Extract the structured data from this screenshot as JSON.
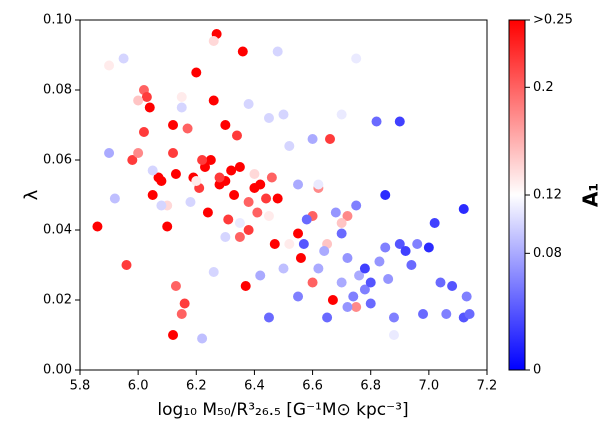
{
  "chart_data": {
    "type": "scatter",
    "xlabel": "log₁₀ M₅₀/R³₂₆.₅ [G⁻¹M⊙ kpc⁻³]",
    "ylabel": "λ",
    "xlim": [
      5.8,
      7.2
    ],
    "xticks": [
      5.8,
      {
        "value": 6,
        "label": "6.0"
      },
      6.2,
      6.4,
      6.6,
      6.8,
      {
        "value": 7,
        "label": "7.0"
      },
      7.2
    ],
    "ylim": [
      0,
      0.1
    ],
    "yticks": [
      {
        "value": 0,
        "label": "0.00"
      },
      0.02,
      0.04,
      0.06,
      0.08,
      {
        "value": 0.1,
        "label": "0.10"
      }
    ],
    "colormap": "bwr",
    "colorbar_label": "A₁",
    "clim": [
      0,
      0.25
    ],
    "cmid": 0.12,
    "cticks": [
      0,
      0.08,
      0.12,
      0.2,
      {
        "value": 0.25,
        "label": ">0.25"
      }
    ],
    "x": [
      5.86,
      5.96,
      5.98,
      6.0,
      6.02,
      6.04,
      6.03,
      6.02,
      6.05,
      6.07,
      6.08,
      6.1,
      6.12,
      6.12,
      6.13,
      6.13,
      6.12,
      6.15,
      6.16,
      6.17,
      6.19,
      6.2,
      6.21,
      6.23,
      6.24,
      6.25,
      6.26,
      6.27,
      6.28,
      6.3,
      6.31,
      6.32,
      6.33,
      6.34,
      6.35,
      6.36,
      6.37,
      6.38,
      6.4,
      6.41,
      6.42,
      6.44,
      6.46,
      6.47,
      6.48,
      6.55,
      6.56,
      6.6,
      6.62,
      6.66,
      6.67,
      6.72,
      6.75,
      6.6,
      6.3,
      6.22,
      6.35,
      6.38,
      6.28,
      5.9,
      6.0,
      6.1,
      6.15,
      6.2,
      6.26,
      6.4,
      6.45,
      6.5,
      6.52,
      6.65,
      6.7,
      6.75,
      6.8,
      6.88,
      6.62,
      6.7,
      5.9,
      5.92,
      5.95,
      6.05,
      6.08,
      6.15,
      6.18,
      6.22,
      6.26,
      6.3,
      6.35,
      6.38,
      6.45,
      6.48,
      6.5,
      6.52,
      6.42,
      6.45,
      6.5,
      6.55,
      6.58,
      6.62,
      6.64,
      6.65,
      6.68,
      6.7,
      6.72,
      6.74,
      6.76,
      6.78,
      6.8,
      6.82,
      6.83,
      6.85,
      6.86,
      6.88,
      6.9,
      6.9,
      6.92,
      6.94,
      6.96,
      6.98,
      7.0,
      7.02,
      7.04,
      7.06,
      7.08,
      7.12,
      7.12,
      7.13,
      7.14,
      6.85,
      6.75,
      6.6,
      6.55,
      6.7,
      6.78,
      6.8,
      6.72,
      6.57
    ],
    "y": [
      0.041,
      0.03,
      0.06,
      0.062,
      0.08,
      0.075,
      0.078,
      0.068,
      0.05,
      0.055,
      0.054,
      0.041,
      0.07,
      0.062,
      0.056,
      0.024,
      0.01,
      0.016,
      0.019,
      0.069,
      0.055,
      0.085,
      0.052,
      0.058,
      0.045,
      0.06,
      0.077,
      0.096,
      0.053,
      0.07,
      0.043,
      0.057,
      0.05,
      0.067,
      0.058,
      0.091,
      0.024,
      0.048,
      0.052,
      0.045,
      0.053,
      0.049,
      0.055,
      0.036,
      0.049,
      0.039,
      0.032,
      0.044,
      0.052,
      0.066,
      0.02,
      0.044,
      0.018,
      0.025,
      0.054,
      0.06,
      0.038,
      0.04,
      0.055,
      0.087,
      0.077,
      0.047,
      0.078,
      0.054,
      0.094,
      0.056,
      0.044,
      0.055,
      0.036,
      0.036,
      0.042,
      0.089,
      0.037,
      0.01,
      0.053,
      0.073,
      0.062,
      0.049,
      0.089,
      0.057,
      0.047,
      0.075,
      0.048,
      0.009,
      0.028,
      0.038,
      0.042,
      0.076,
      0.072,
      0.091,
      0.073,
      0.064,
      0.027,
      0.015,
      0.029,
      0.053,
      0.043,
      0.029,
      0.034,
      0.015,
      0.045,
      0.025,
      0.032,
      0.021,
      0.027,
      0.023,
      0.019,
      0.071,
      0.031,
      0.035,
      0.026,
      0.015,
      0.071,
      0.036,
      0.034,
      0.03,
      0.036,
      0.016,
      0.035,
      0.042,
      0.025,
      0.016,
      0.024,
      0.046,
      0.015,
      0.021,
      0.016,
      0.05,
      0.047,
      0.066,
      0.021,
      0.039,
      0.029,
      0.025,
      0.018,
      0.036
    ],
    "c": [
      0.25,
      0.22,
      0.22,
      0.18,
      0.2,
      0.25,
      0.22,
      0.22,
      0.25,
      0.25,
      0.25,
      0.25,
      0.25,
      0.22,
      0.25,
      0.2,
      0.25,
      0.2,
      0.22,
      0.2,
      0.25,
      0.25,
      0.22,
      0.25,
      0.25,
      0.25,
      0.25,
      0.25,
      0.25,
      0.25,
      0.22,
      0.25,
      0.25,
      0.22,
      0.25,
      0.25,
      0.25,
      0.2,
      0.25,
      0.2,
      0.25,
      0.22,
      0.2,
      0.25,
      0.25,
      0.25,
      0.25,
      0.2,
      0.18,
      0.22,
      0.25,
      0.18,
      0.18,
      0.2,
      0.25,
      0.22,
      0.2,
      0.22,
      0.22,
      0.13,
      0.15,
      0.14,
      0.13,
      0.13,
      0.14,
      0.14,
      0.13,
      0.12,
      0.13,
      0.15,
      0.15,
      0.11,
      0.12,
      0.11,
      0.11,
      0.11,
      0.08,
      0.09,
      0.1,
      0.1,
      0.1,
      0.1,
      0.1,
      0.09,
      0.1,
      0.1,
      0.11,
      0.1,
      0.1,
      0.1,
      0.1,
      0.1,
      0.08,
      0.05,
      0.09,
      0.08,
      0.05,
      0.08,
      0.08,
      0.05,
      0.07,
      0.08,
      0.07,
      0.06,
      0.08,
      0.06,
      0.05,
      0.05,
      0.07,
      0.06,
      0.07,
      0.06,
      0.03,
      0.04,
      0.03,
      0.05,
      0.06,
      0.05,
      0.02,
      0.03,
      0.05,
      0.06,
      0.04,
      0.02,
      0.04,
      0.06,
      0.05,
      0.02,
      0.06,
      0.08,
      0.06,
      0.05,
      0.03,
      0.04,
      0.07,
      0.04
    ]
  }
}
